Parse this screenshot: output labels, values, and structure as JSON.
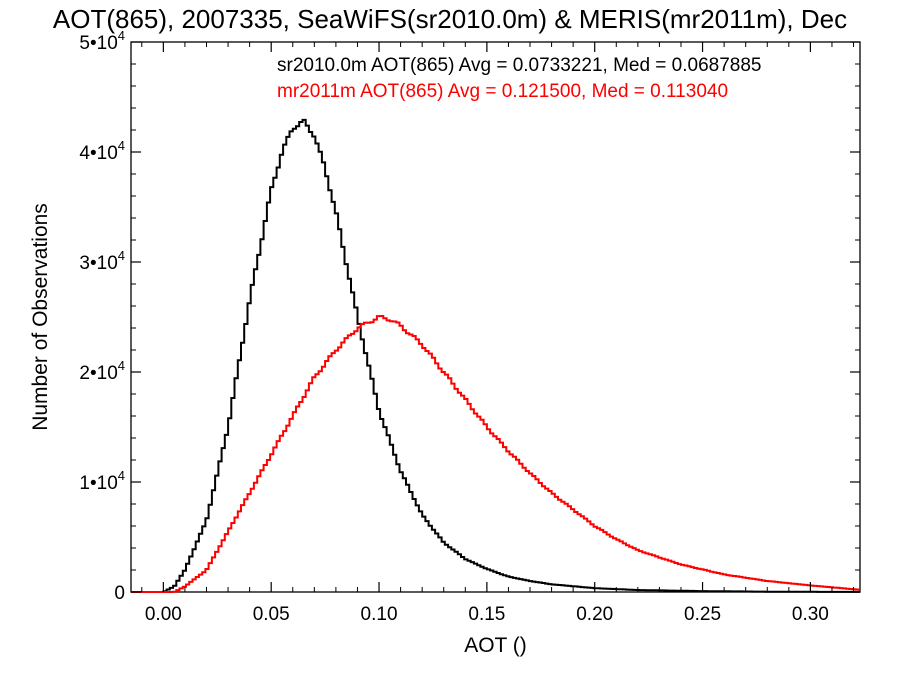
{
  "chart_data": {
    "type": "line",
    "title": "AOT(865), 2007335, SeaWiFS(sr2010.0m) & MERIS(mr2011m), Dec",
    "xlabel": "AOT ()",
    "ylabel": "Number of Observations",
    "xlim": [
      -0.015,
      0.323
    ],
    "ylim": [
      0,
      50000
    ],
    "x_ticks": [
      "0.00",
      "0.05",
      "0.10",
      "0.15",
      "0.20",
      "0.25",
      "0.30"
    ],
    "x_tick_values": [
      0.0,
      0.05,
      0.1,
      0.15,
      0.2,
      0.25,
      0.3
    ],
    "y_ticks": [
      {
        "value": 0,
        "mantissa": "0",
        "exponent": ""
      },
      {
        "value": 10000,
        "mantissa": "1•10",
        "exponent": "4"
      },
      {
        "value": 20000,
        "mantissa": "2•10",
        "exponent": "4"
      },
      {
        "value": 30000,
        "mantissa": "3•10",
        "exponent": "4"
      },
      {
        "value": 40000,
        "mantissa": "4•10",
        "exponent": "4"
      },
      {
        "value": 50000,
        "mantissa": "5•10",
        "exponent": "4"
      }
    ],
    "legend": [
      {
        "text": "sr2010.0m AOT(865) Avg = 0.0733221, Med = 0.0687885",
        "color": "#000000"
      },
      {
        "text": "mr2011m AOT(865) Avg = 0.121500, Med = 0.113040",
        "color": "#ff0000"
      }
    ],
    "series": [
      {
        "color": "#000000",
        "x": [
          -0.015,
          0.0,
          0.005,
          0.01,
          0.02,
          0.03,
          0.04,
          0.05,
          0.055,
          0.06,
          0.065,
          0.07,
          0.075,
          0.08,
          0.09,
          0.1,
          0.11,
          0.12,
          0.13,
          0.14,
          0.15,
          0.16,
          0.17,
          0.18,
          0.2,
          0.22,
          0.25,
          0.28,
          0.3,
          0.323
        ],
        "y": [
          0,
          0,
          500,
          2000,
          6500,
          15000,
          26500,
          36500,
          40000,
          42200,
          42800,
          41500,
          38500,
          34500,
          25000,
          16500,
          11000,
          7000,
          4500,
          3000,
          2100,
          1400,
          1000,
          700,
          350,
          180,
          80,
          30,
          15,
          5
        ]
      },
      {
        "color": "#ff0000",
        "x": [
          -0.015,
          0.005,
          0.01,
          0.02,
          0.03,
          0.04,
          0.05,
          0.06,
          0.07,
          0.08,
          0.09,
          0.1,
          0.105,
          0.11,
          0.12,
          0.13,
          0.14,
          0.15,
          0.16,
          0.17,
          0.18,
          0.19,
          0.2,
          0.21,
          0.22,
          0.24,
          0.26,
          0.28,
          0.3,
          0.323
        ],
        "y": [
          0,
          0,
          500,
          2000,
          5500,
          9000,
          12500,
          16000,
          19500,
          22000,
          24000,
          25000,
          24800,
          24200,
          22500,
          20000,
          17500,
          15000,
          12800,
          10800,
          9000,
          7500,
          6000,
          4800,
          3800,
          2500,
          1600,
          1000,
          600,
          200
        ]
      }
    ]
  }
}
